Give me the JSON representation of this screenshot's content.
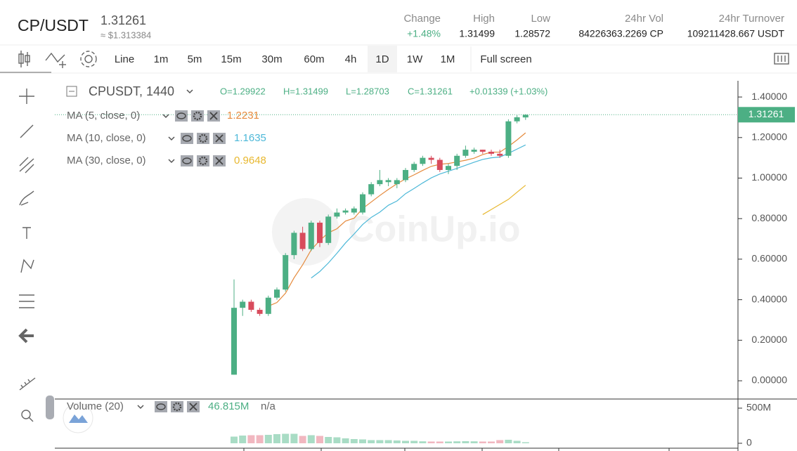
{
  "header": {
    "pair": "CP/USDT",
    "price": "1.31261",
    "usd_price": "≈ $1.313384",
    "stats": [
      {
        "label": "Change",
        "value": "+1.48%"
      },
      {
        "label": "High",
        "value": "1.31499"
      },
      {
        "label": "Low",
        "value": "1.28572"
      },
      {
        "label": "24hr Vol",
        "value": "84226363.2269 CP"
      },
      {
        "label": "24hr Turnover",
        "value": "109211428.667 USDT"
      }
    ]
  },
  "toolbar": {
    "items": [
      "Line",
      "1m",
      "5m",
      "15m",
      "30m",
      "60m",
      "4h",
      "1D",
      "1W",
      "1M",
      "Full screen"
    ],
    "selected": "1D"
  },
  "chart": {
    "type": "candlestick",
    "symbol": "CPUSDT, 1440",
    "ohlc": [
      "O=1.29922",
      "H=1.31499",
      "L=1.28703",
      "C=1.31261",
      "+0.01339 (+1.03%)"
    ],
    "watermark": "CoinUp.io",
    "up_color": "#4caf84",
    "down_color": "#d84b5c",
    "ylim": [
      -0.09,
      1.48
    ],
    "yticks": [
      {
        "value": 0,
        "label": "0.00000"
      },
      {
        "value": 0.2,
        "label": "0.20000"
      },
      {
        "value": 0.4,
        "label": "0.40000"
      },
      {
        "value": 0.6,
        "label": "0.60000"
      },
      {
        "value": 0.8,
        "label": "0.80000"
      },
      {
        "value": 1.0,
        "label": "1.00000"
      },
      {
        "value": 1.2,
        "label": "1.20000"
      },
      {
        "value": 1.4,
        "label": "1.40000"
      }
    ],
    "last_price": {
      "value": 1.31261,
      "label": "1.31261"
    },
    "candles": [
      {
        "o": 0.03,
        "h": 0.5,
        "l": 0.03,
        "c": 0.36
      },
      {
        "o": 0.36,
        "h": 0.4,
        "l": 0.32,
        "c": 0.39
      },
      {
        "o": 0.39,
        "h": 0.4,
        "l": 0.34,
        "c": 0.35
      },
      {
        "o": 0.35,
        "h": 0.36,
        "l": 0.32,
        "c": 0.33
      },
      {
        "o": 0.33,
        "h": 0.42,
        "l": 0.32,
        "c": 0.41
      },
      {
        "o": 0.41,
        "h": 0.46,
        "l": 0.4,
        "c": 0.45
      },
      {
        "o": 0.45,
        "h": 0.63,
        "l": 0.44,
        "c": 0.62
      },
      {
        "o": 0.62,
        "h": 0.74,
        "l": 0.6,
        "c": 0.73
      },
      {
        "o": 0.73,
        "h": 0.76,
        "l": 0.64,
        "c": 0.65
      },
      {
        "o": 0.65,
        "h": 0.79,
        "l": 0.64,
        "c": 0.78
      },
      {
        "o": 0.78,
        "h": 0.79,
        "l": 0.66,
        "c": 0.68
      },
      {
        "o": 0.68,
        "h": 0.82,
        "l": 0.67,
        "c": 0.81
      },
      {
        "o": 0.81,
        "h": 0.85,
        "l": 0.8,
        "c": 0.83
      },
      {
        "o": 0.83,
        "h": 0.85,
        "l": 0.82,
        "c": 0.84
      },
      {
        "o": 0.83,
        "h": 0.86,
        "l": 0.82,
        "c": 0.85
      },
      {
        "o": 0.83,
        "h": 0.93,
        "l": 0.82,
        "c": 0.92
      },
      {
        "o": 0.92,
        "h": 0.98,
        "l": 0.91,
        "c": 0.97
      },
      {
        "o": 0.97,
        "h": 1.04,
        "l": 0.96,
        "c": 0.99
      },
      {
        "o": 0.98,
        "h": 1.0,
        "l": 0.96,
        "c": 0.99
      },
      {
        "o": 0.97,
        "h": 1.0,
        "l": 0.95,
        "c": 0.99
      },
      {
        "o": 0.99,
        "h": 1.05,
        "l": 0.98,
        "c": 1.04
      },
      {
        "o": 1.04,
        "h": 1.08,
        "l": 1.03,
        "c": 1.07
      },
      {
        "o": 1.07,
        "h": 1.11,
        "l": 1.06,
        "c": 1.1
      },
      {
        "o": 1.1,
        "h": 1.11,
        "l": 1.07,
        "c": 1.09
      },
      {
        "o": 1.09,
        "h": 1.1,
        "l": 1.03,
        "c": 1.04
      },
      {
        "o": 1.04,
        "h": 1.07,
        "l": 1.02,
        "c": 1.06
      },
      {
        "o": 1.06,
        "h": 1.12,
        "l": 1.04,
        "c": 1.11
      },
      {
        "o": 1.11,
        "h": 1.16,
        "l": 1.1,
        "c": 1.14
      },
      {
        "o": 1.13,
        "h": 1.15,
        "l": 1.12,
        "c": 1.14
      },
      {
        "o": 1.14,
        "h": 1.14,
        "l": 1.12,
        "c": 1.13
      },
      {
        "o": 1.13,
        "h": 1.14,
        "l": 1.11,
        "c": 1.12
      },
      {
        "o": 1.12,
        "h": 1.14,
        "l": 1.1,
        "c": 1.11
      },
      {
        "o": 1.11,
        "h": 1.29,
        "l": 1.1,
        "c": 1.28
      },
      {
        "o": 1.28,
        "h": 1.31,
        "l": 1.27,
        "c": 1.3
      },
      {
        "o": 1.29922,
        "h": 1.31499,
        "l": 1.28703,
        "c": 1.31261
      }
    ],
    "ma": [
      {
        "name": "MA (5, close, 0)",
        "color": "#e58a3c",
        "values": [
          null,
          null,
          null,
          null,
          0.368,
          0.386,
          0.432,
          0.508,
          0.572,
          0.646,
          0.692,
          0.73,
          0.75,
          0.788,
          0.802,
          0.85,
          0.882,
          0.914,
          0.944,
          0.972,
          0.996,
          1.016,
          1.038,
          1.058,
          1.068,
          1.072,
          1.08,
          1.088,
          1.098,
          1.116,
          1.128,
          1.128,
          1.156,
          1.188,
          1.2231
        ]
      },
      {
        "name": "MA (10, close, 0)",
        "color": "#4db8d8",
        "values": [
          null,
          null,
          null,
          null,
          null,
          null,
          null,
          null,
          null,
          0.507,
          0.539,
          0.581,
          0.629,
          0.68,
          0.724,
          0.771,
          0.806,
          0.832,
          0.866,
          0.887,
          0.923,
          0.949,
          0.976,
          1.001,
          1.02,
          1.034,
          1.048,
          1.063,
          1.078,
          1.092,
          1.1,
          1.104,
          1.122,
          1.143,
          1.1635
        ]
      },
      {
        "name": "MA (30, close, 0)",
        "color": "#e8b830",
        "values": [
          null,
          null,
          null,
          null,
          null,
          null,
          null,
          null,
          null,
          null,
          null,
          null,
          null,
          null,
          null,
          null,
          null,
          null,
          null,
          null,
          null,
          null,
          null,
          null,
          null,
          null,
          null,
          null,
          null,
          0.82,
          0.845,
          0.87,
          0.895,
          0.93,
          0.9648
        ]
      }
    ],
    "volume": {
      "name": "Volume (20)",
      "value_label": "46.815M",
      "extra": "n/a",
      "ylim": [
        -70,
        630
      ],
      "yticks": [
        {
          "value": 500,
          "label": "500M"
        },
        0
      ],
      "values": [
        95,
        110,
        115,
        115,
        120,
        130,
        135,
        135,
        105,
        115,
        105,
        90,
        85,
        70,
        60,
        55,
        45,
        45,
        45,
        40,
        35,
        35,
        28,
        25,
        25,
        25,
        28,
        30,
        28,
        25,
        25,
        45,
        50,
        35,
        15
      ]
    }
  }
}
